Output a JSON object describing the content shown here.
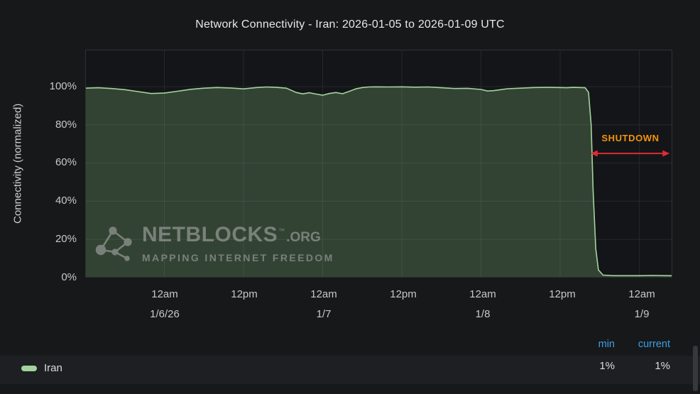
{
  "header": {
    "title": "Network Connectivity - Iran: 2026-01-05 to 2026-01-09 UTC"
  },
  "y_axis": {
    "label": "Connectivity (normalized)",
    "ticks": [
      "100%",
      "80%",
      "60%",
      "40%",
      "20%",
      "0%"
    ]
  },
  "x_axis": {
    "ticks": [
      {
        "time": "12am",
        "date": "1/6/26"
      },
      {
        "time": "12pm",
        "date": ""
      },
      {
        "time": "12am",
        "date": "1/7"
      },
      {
        "time": "12pm",
        "date": ""
      },
      {
        "time": "12am",
        "date": "1/8"
      },
      {
        "time": "12pm",
        "date": ""
      },
      {
        "time": "12am",
        "date": "1/9"
      }
    ]
  },
  "annotation": {
    "label": "SHUTDOWN",
    "label_color": "#f2940c",
    "arrow_color": "#df2b32",
    "x1_h": 76.6,
    "x2_h": 88.6,
    "y_value": 65
  },
  "watermark": {
    "name": "NETBLOCKS",
    "tm": "™",
    "suffix": ".ORG",
    "tagline": "MAPPING INTERNET FREEDOM"
  },
  "legend": {
    "series_label": "Iran",
    "swatch_color": "#a3d39c",
    "header_color": "#3ba0e8",
    "stats_headers": [
      "min",
      "current"
    ],
    "stats_values": [
      "1%",
      "1%"
    ]
  },
  "chart_data": {
    "type": "area",
    "title": "Network Connectivity - Iran: 2026-01-05 to 2026-01-09 UTC",
    "ylabel": "Connectivity (normalized)",
    "series_name": "Iran",
    "ylim": [
      0,
      100
    ],
    "y_ticks": [
      0,
      20,
      40,
      60,
      80,
      100
    ],
    "y_tick_labels": [
      "0%",
      "20%",
      "40%",
      "60%",
      "80%",
      "100%"
    ],
    "x_unit": "hours since 2026-01-05 12:00 UTC (plot left edge)",
    "x_max": 89,
    "x_tick_hours": [
      12,
      24,
      36,
      48,
      60,
      72,
      84
    ],
    "x_tick_labels": [
      "12am 1/6/26",
      "12pm",
      "12am 1/7",
      "12pm",
      "12am 1/8",
      "12pm",
      "12am 1/9"
    ],
    "x": [
      0,
      2,
      4,
      6,
      8,
      10,
      12,
      14,
      16,
      18,
      20,
      22,
      24,
      26,
      27.5,
      29,
      30.5,
      32,
      33,
      34,
      35,
      36,
      37,
      38,
      39,
      40,
      41,
      42,
      43,
      44,
      46,
      48,
      50,
      52,
      54,
      56,
      58,
      60,
      61,
      62,
      63,
      64,
      66,
      68,
      70,
      72,
      73,
      74,
      75,
      75.8,
      76.3,
      76.7,
      77.0,
      77.4,
      77.8,
      78.5,
      80,
      82,
      84,
      86,
      88,
      89
    ],
    "values": [
      99.2,
      99.4,
      99.0,
      98.4,
      97.4,
      96.4,
      96.6,
      97.6,
      98.6,
      99.2,
      99.5,
      99.3,
      98.8,
      99.5,
      99.8,
      99.6,
      99.2,
      96.9,
      96.2,
      96.8,
      96.1,
      95.5,
      96.4,
      96.9,
      96.3,
      97.5,
      98.8,
      99.5,
      99.8,
      99.9,
      99.8,
      99.9,
      99.7,
      99.8,
      99.4,
      99.0,
      99.1,
      98.5,
      97.7,
      97.9,
      98.4,
      98.9,
      99.2,
      99.5,
      99.6,
      99.5,
      99.4,
      99.6,
      99.5,
      99.4,
      97.0,
      80.0,
      45.0,
      15.0,
      4.0,
      1.3,
      1.0,
      1.0,
      1.0,
      1.1,
      1.0,
      1.0
    ],
    "line_color": "#a5d49c",
    "fill_color": "rgba(134,187,124,0.28)",
    "grid_color": "#26282c",
    "annotation_label": "SHUTDOWN",
    "stats": {
      "min": "1%",
      "current": "1%"
    },
    "legend_position": "bottom-left"
  }
}
